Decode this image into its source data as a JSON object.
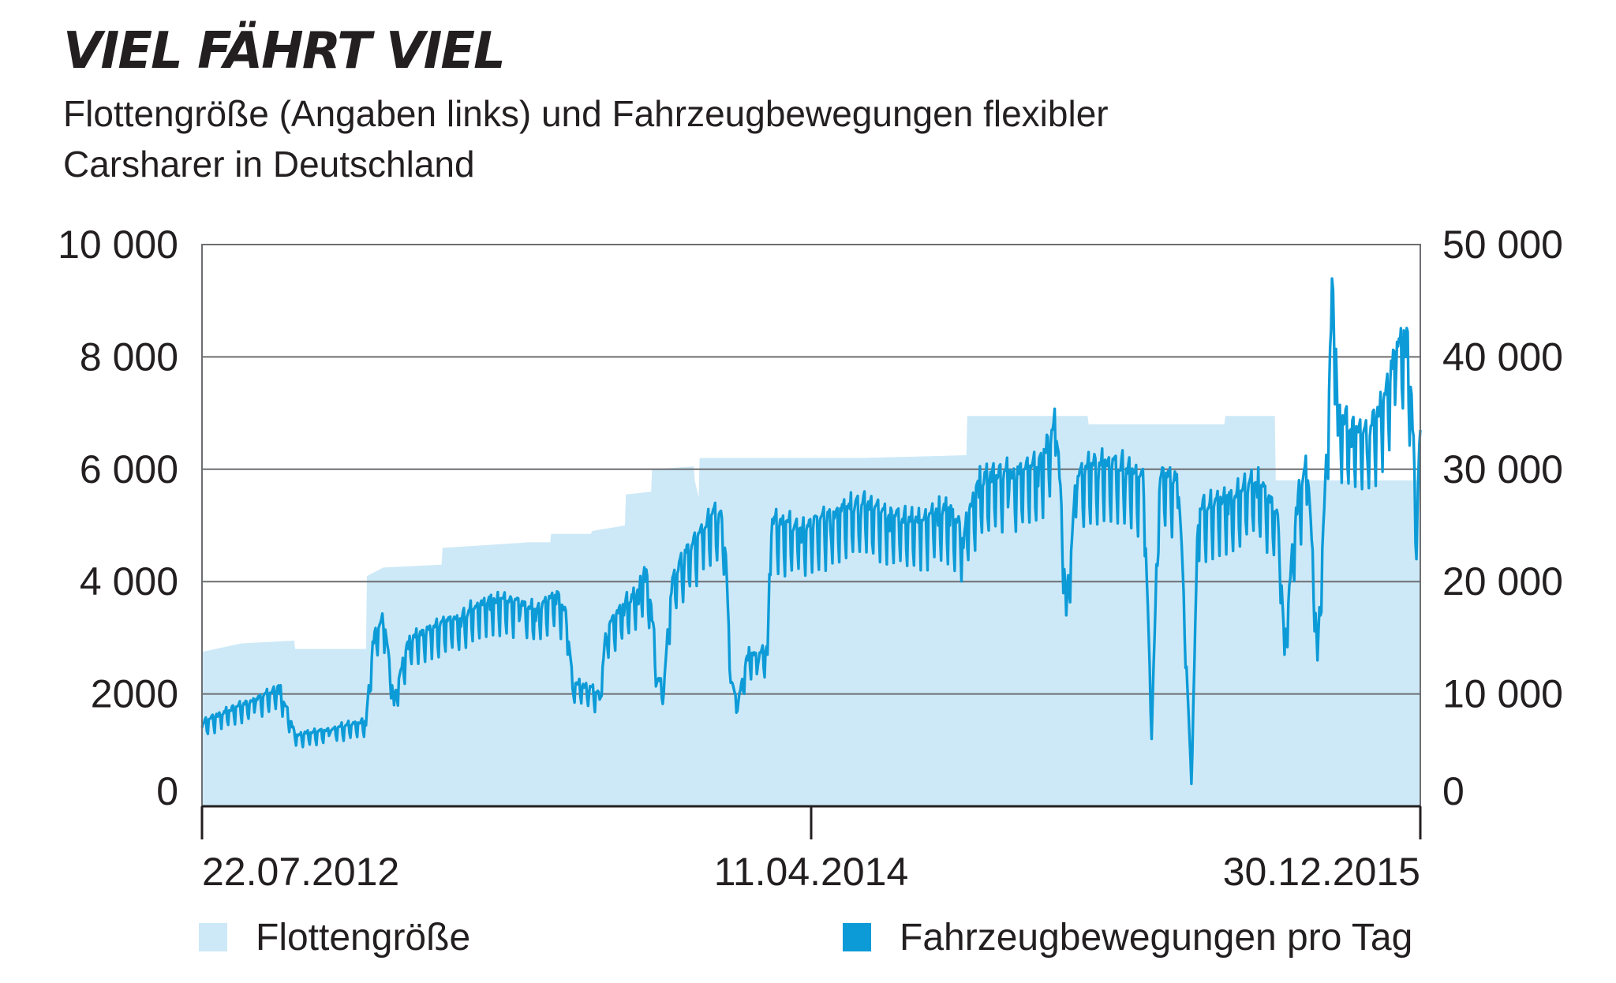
{
  "header": {
    "title": "VIEL FÄHRT VIEL",
    "subtitle": "Flottengröße (Angaben links) und Fahrzeugbewegungen flexibler Carsharer in Deutschland"
  },
  "chart_data": {
    "type": "area",
    "title": "VIEL FÄHRT VIEL",
    "subtitle": "Flottengröße (Angaben links) und Fahrzeugbewegungen flexibler Carsharer in Deutschland",
    "x_axis": {
      "type": "date",
      "range": [
        "2012-07-22",
        "2015-12-30"
      ],
      "tick_labels": [
        "22.07.2012",
        "11.04.2014",
        "30.12.2015"
      ]
    },
    "y_axis_left": {
      "range": [
        0,
        10000
      ],
      "ticks": [
        "0",
        "2000",
        "4 000",
        "6 000",
        "8 000",
        "10 000"
      ]
    },
    "y_axis_right": {
      "range": [
        0,
        50000
      ],
      "ticks": [
        "0",
        "10 000",
        "20 000",
        "30 000",
        "40 000",
        "50 000"
      ]
    },
    "grid": true,
    "legend_position": "bottom",
    "series": [
      {
        "name": "Flottengröße",
        "type": "area",
        "axis": "left",
        "color": "#cde9f7",
        "points": [
          [
            "2012-07-22",
            2750
          ],
          [
            "2012-09-01",
            2900
          ],
          [
            "2012-10-25",
            2950
          ],
          [
            "2012-10-26",
            2800
          ],
          [
            "2013-01-07",
            2800
          ],
          [
            "2013-01-08",
            4100
          ],
          [
            "2013-01-25",
            4250
          ],
          [
            "2013-03-26",
            4300
          ],
          [
            "2013-03-27",
            4600
          ],
          [
            "2013-06-24",
            4700
          ],
          [
            "2013-07-16",
            4700
          ],
          [
            "2013-07-17",
            4850
          ],
          [
            "2013-08-27",
            4850
          ],
          [
            "2013-08-28",
            4900
          ],
          [
            "2013-10-01",
            5000
          ],
          [
            "2013-10-02",
            5550
          ],
          [
            "2013-10-28",
            5600
          ],
          [
            "2013-10-29",
            6000
          ],
          [
            "2013-12-11",
            6050
          ],
          [
            "2013-12-12",
            5800
          ],
          [
            "2013-12-16",
            5500
          ],
          [
            "2013-12-17",
            6200
          ],
          [
            "2014-06-01",
            6200
          ],
          [
            "2014-09-18",
            6250
          ],
          [
            "2014-09-19",
            6950
          ],
          [
            "2015-01-21",
            6950
          ],
          [
            "2015-01-22",
            6800
          ],
          [
            "2015-06-11",
            6800
          ],
          [
            "2015-06-12",
            6950
          ],
          [
            "2015-08-02",
            6950
          ],
          [
            "2015-08-03",
            5800
          ],
          [
            "2015-12-30",
            5800
          ]
        ]
      },
      {
        "name": "Fahrzeugbewegungen pro Tag",
        "type": "line",
        "axis": "right",
        "color": "#0d9bd8",
        "points": [
          [
            "2012-07-22",
            7000
          ],
          [
            "2012-08-10",
            7800
          ],
          [
            "2012-09-15",
            9000
          ],
          [
            "2012-10-10",
            10000
          ],
          [
            "2012-10-26",
            6000
          ],
          [
            "2012-12-01",
            6500
          ],
          [
            "2013-01-07",
            7200
          ],
          [
            "2013-01-15",
            14500
          ],
          [
            "2013-01-25",
            16000
          ],
          [
            "2013-02-05",
            9000
          ],
          [
            "2013-02-20",
            14000
          ],
          [
            "2013-03-15",
            15000
          ],
          [
            "2013-04-15",
            16000
          ],
          [
            "2013-05-15",
            17500
          ],
          [
            "2013-06-15",
            17000
          ],
          [
            "2013-07-01",
            16500
          ],
          [
            "2013-07-22",
            18000
          ],
          [
            "2013-08-02",
            16000
          ],
          [
            "2013-08-08",
            10500
          ],
          [
            "2013-08-25",
            10000
          ],
          [
            "2013-09-05",
            9500
          ],
          [
            "2013-09-12",
            15000
          ],
          [
            "2013-09-30",
            17000
          ],
          [
            "2013-10-15",
            18000
          ],
          [
            "2013-10-22",
            20000
          ],
          [
            "2013-10-29",
            16500
          ],
          [
            "2013-11-03",
            11000
          ],
          [
            "2013-11-10",
            10000
          ],
          [
            "2013-11-18",
            19000
          ],
          [
            "2013-12-01",
            21000
          ],
          [
            "2013-12-20",
            23500
          ],
          [
            "2014-01-05",
            25000
          ],
          [
            "2014-01-12",
            23000
          ],
          [
            "2014-01-18",
            11000
          ],
          [
            "2014-01-25",
            8500
          ],
          [
            "2014-02-05",
            13000
          ],
          [
            "2014-02-15",
            12500
          ],
          [
            "2014-02-25",
            13500
          ],
          [
            "2014-03-01",
            24000
          ],
          [
            "2014-04-01",
            23500
          ],
          [
            "2014-05-01",
            24500
          ],
          [
            "2014-06-01",
            25500
          ],
          [
            "2014-07-01",
            24500
          ],
          [
            "2014-08-01",
            24000
          ],
          [
            "2014-08-20",
            25000
          ],
          [
            "2014-09-01",
            25000
          ],
          [
            "2014-09-15",
            23000
          ],
          [
            "2014-10-01",
            27500
          ],
          [
            "2014-11-01",
            28000
          ],
          [
            "2014-12-01",
            28500
          ],
          [
            "2014-12-20",
            32500
          ],
          [
            "2014-12-30",
            17000
          ],
          [
            "2015-01-10",
            28000
          ],
          [
            "2015-02-01",
            29000
          ],
          [
            "2015-03-01",
            28500
          ],
          [
            "2015-03-20",
            27500
          ],
          [
            "2015-03-28",
            6000
          ],
          [
            "2015-04-05",
            28000
          ],
          [
            "2015-04-25",
            27500
          ],
          [
            "2015-05-08",
            2000
          ],
          [
            "2015-05-15",
            25000
          ],
          [
            "2015-06-15",
            26000
          ],
          [
            "2015-07-15",
            27500
          ],
          [
            "2015-08-06",
            24500
          ],
          [
            "2015-08-12",
            13500
          ],
          [
            "2015-08-25",
            26000
          ],
          [
            "2015-09-05",
            29000
          ],
          [
            "2015-09-15",
            13000
          ],
          [
            "2015-09-25",
            30000
          ],
          [
            "2015-10-01",
            46000
          ],
          [
            "2015-10-06",
            33000
          ],
          [
            "2015-10-20",
            32000
          ],
          [
            "2015-11-05",
            31500
          ],
          [
            "2015-11-20",
            33500
          ],
          [
            "2015-12-05",
            38500
          ],
          [
            "2015-12-15",
            40000
          ],
          [
            "2015-12-22",
            33500
          ],
          [
            "2015-12-26",
            22000
          ],
          [
            "2015-12-30",
            33500
          ]
        ]
      }
    ]
  },
  "legend": {
    "items": [
      {
        "label": "Flottengröße",
        "color": "#cde9f7"
      },
      {
        "label": "Fahrzeugbewegungen pro Tag",
        "color": "#0d9bd8"
      }
    ]
  }
}
